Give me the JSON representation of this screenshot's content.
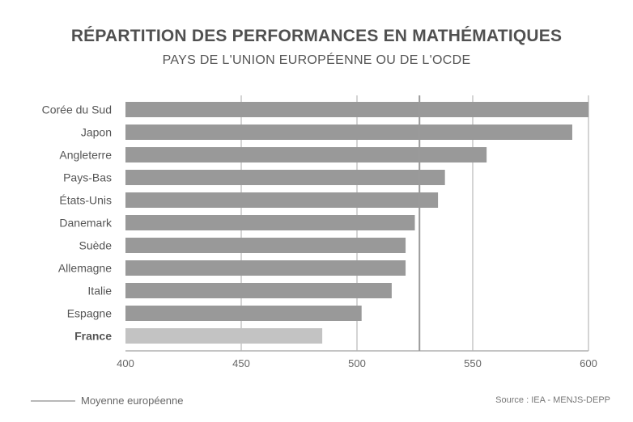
{
  "title": "RÉPARTITION DES PERFORMANCES EN MATHÉMATIQUES",
  "subtitle": "PAYS DE L'UNION EUROPÉENNE OU DE L'OCDE",
  "legend_label": "Moyenne européenne",
  "source": "Source : IEA - MENJS-DEPP",
  "colors": {
    "bar": "#999999",
    "highlight": "#c3c3c3",
    "grid": "#a8a8a8",
    "average": "#9a9a9a"
  },
  "chart_data": {
    "type": "bar",
    "orientation": "horizontal",
    "title": "RÉPARTITION DES PERFORMANCES EN MATHÉMATIQUES",
    "subtitle": "PAYS DE L'UNION EUROPÉENNE OU DE L'OCDE",
    "categories": [
      "Corée du Sud",
      "Japon",
      "Angleterre",
      "Pays-Bas",
      "États-Unis",
      "Danemark",
      "Suède",
      "Allemagne",
      "Italie",
      "Espagne",
      "France"
    ],
    "values": [
      600,
      593,
      556,
      538,
      535,
      525,
      521,
      521,
      515,
      502,
      485
    ],
    "highlight": "France",
    "xlim": [
      400,
      600
    ],
    "xticks": [
      400,
      450,
      500,
      550,
      600
    ],
    "reference_line": {
      "label": "Moyenne européenne",
      "value": 527
    },
    "grid": true,
    "legend_position": "bottom-left"
  }
}
